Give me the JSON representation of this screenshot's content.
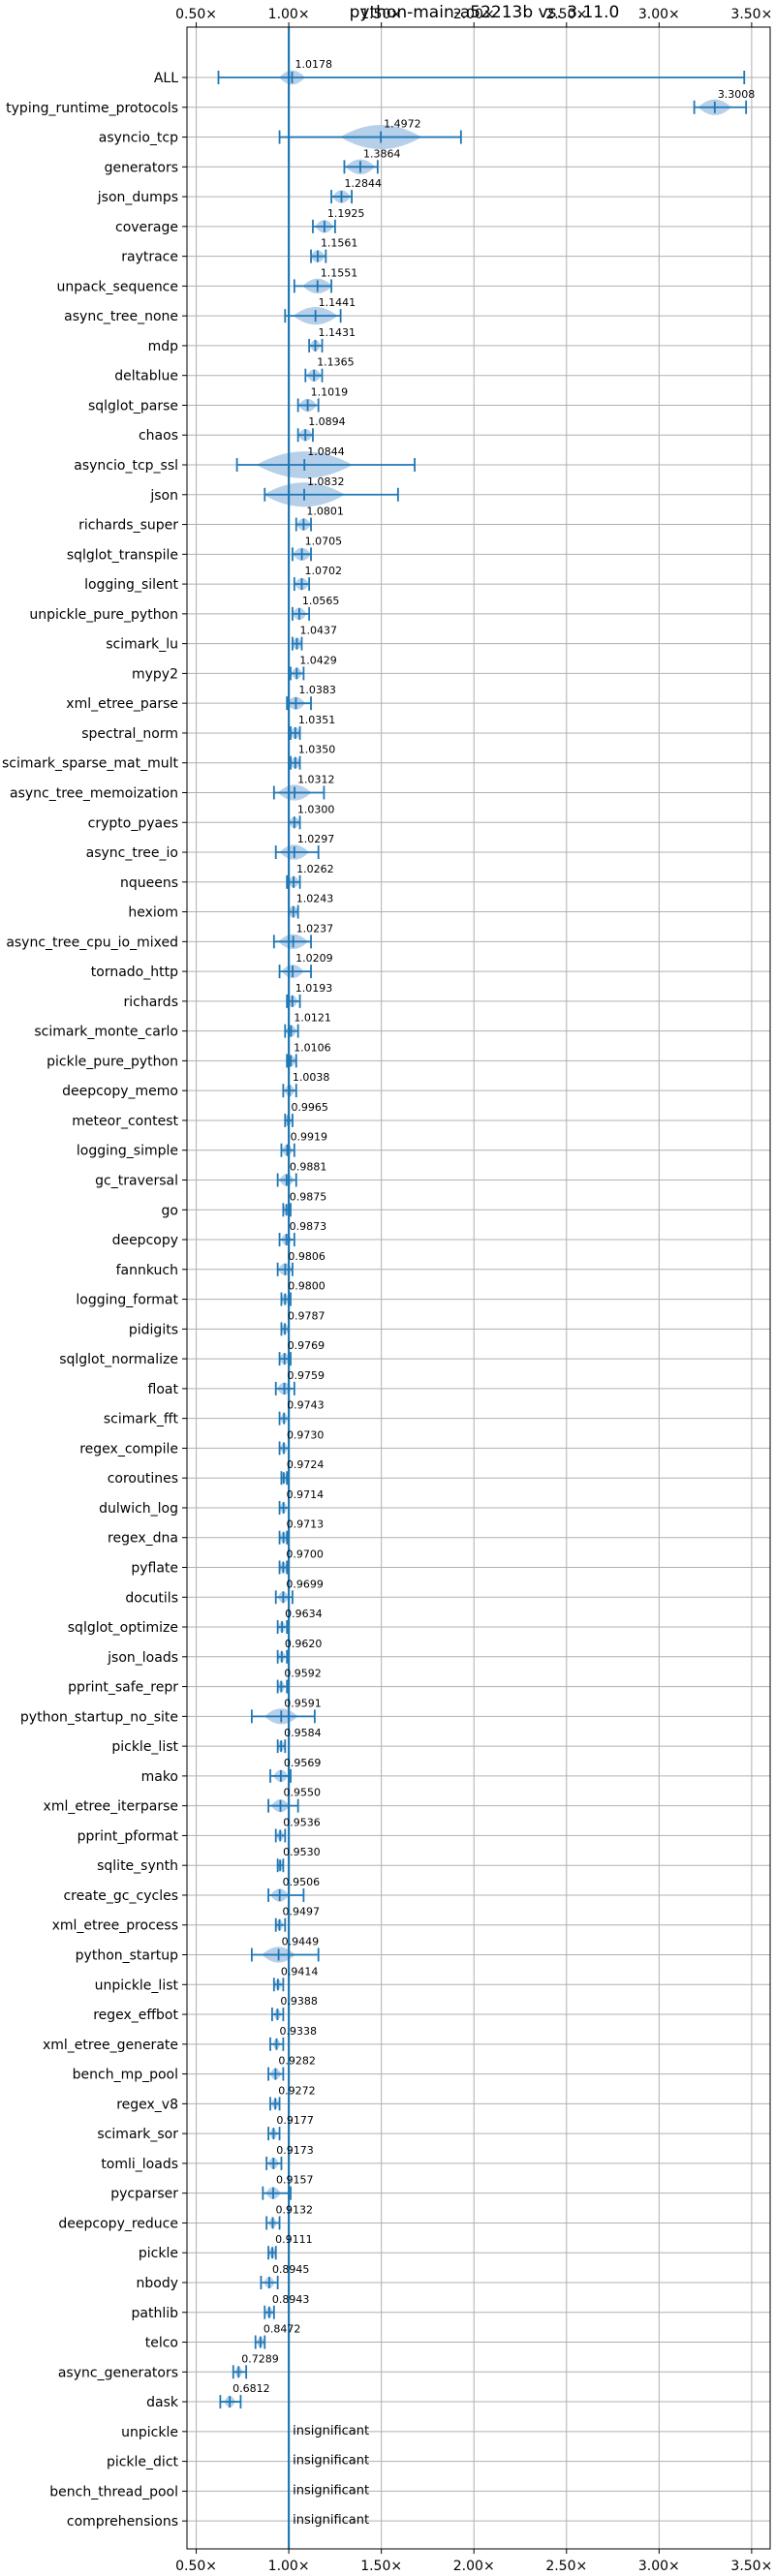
{
  "chart_data": {
    "type": "violin",
    "title": "python-main-a52213b vs. 3.11.0",
    "xlim": [
      0.45,
      3.6
    ],
    "x_ticks": [
      0.5,
      1.0,
      1.5,
      2.0,
      2.5,
      3.0,
      3.5
    ],
    "x_tick_labels": [
      "0.50×",
      "1.00×",
      "1.50×",
      "2.00×",
      "2.50×",
      "3.00×",
      "3.50×"
    ],
    "reference_line": 1.0,
    "grid": true,
    "color": "#1f77b4",
    "violin_fill": "#a9c8e6",
    "insignificant_label": "insignificant",
    "benchmarks": [
      {
        "name": "ALL",
        "median": 1.0178,
        "min": 0.62,
        "max": 3.46,
        "spread": 0.07,
        "label": "1.0178"
      },
      {
        "name": "typing_runtime_protocols",
        "median": 3.3008,
        "min": 3.19,
        "max": 3.47,
        "spread": 0.09,
        "label": "3.3008"
      },
      {
        "name": "asyncio_tcp",
        "median": 1.4972,
        "min": 0.95,
        "max": 1.93,
        "spread": 0.22,
        "label": "1.4972"
      },
      {
        "name": "generators",
        "median": 1.3864,
        "min": 1.3,
        "max": 1.48,
        "spread": 0.08,
        "label": "1.3864"
      },
      {
        "name": "json_dumps",
        "median": 1.2844,
        "min": 1.23,
        "max": 1.34,
        "spread": 0.05,
        "label": "1.2844"
      },
      {
        "name": "coverage",
        "median": 1.1925,
        "min": 1.13,
        "max": 1.25,
        "spread": 0.05,
        "label": "1.1925"
      },
      {
        "name": "raytrace",
        "median": 1.1561,
        "min": 1.12,
        "max": 1.2,
        "spread": 0.04,
        "label": "1.1561"
      },
      {
        "name": "unpack_sequence",
        "median": 1.1551,
        "min": 1.03,
        "max": 1.23,
        "spread": 0.08,
        "label": "1.1551"
      },
      {
        "name": "async_tree_none",
        "median": 1.1441,
        "min": 0.98,
        "max": 1.28,
        "spread": 0.12,
        "label": "1.1441"
      },
      {
        "name": "mdp",
        "median": 1.1431,
        "min": 1.11,
        "max": 1.18,
        "spread": 0.03,
        "label": "1.1431"
      },
      {
        "name": "deltablue",
        "median": 1.1365,
        "min": 1.09,
        "max": 1.18,
        "spread": 0.04,
        "label": "1.1365"
      },
      {
        "name": "sqlglot_parse",
        "median": 1.1019,
        "min": 1.05,
        "max": 1.16,
        "spread": 0.05,
        "label": "1.1019"
      },
      {
        "name": "chaos",
        "median": 1.0894,
        "min": 1.05,
        "max": 1.13,
        "spread": 0.04,
        "label": "1.0894"
      },
      {
        "name": "asyncio_tcp_ssl",
        "median": 1.0844,
        "min": 0.72,
        "max": 1.68,
        "spread": 0.26,
        "label": "1.0844"
      },
      {
        "name": "json",
        "median": 1.0832,
        "min": 0.87,
        "max": 1.59,
        "spread": 0.22,
        "label": "1.0832"
      },
      {
        "name": "richards_super",
        "median": 1.0801,
        "min": 1.04,
        "max": 1.12,
        "spread": 0.04,
        "label": "1.0801"
      },
      {
        "name": "sqlglot_transpile",
        "median": 1.0705,
        "min": 1.02,
        "max": 1.12,
        "spread": 0.05,
        "label": "1.0705"
      },
      {
        "name": "logging_silent",
        "median": 1.0702,
        "min": 1.03,
        "max": 1.11,
        "spread": 0.04,
        "label": "1.0702"
      },
      {
        "name": "unpickle_pure_python",
        "median": 1.0565,
        "min": 1.02,
        "max": 1.11,
        "spread": 0.04,
        "label": "1.0565"
      },
      {
        "name": "scimark_lu",
        "median": 1.0437,
        "min": 1.02,
        "max": 1.07,
        "spread": 0.03,
        "label": "1.0437"
      },
      {
        "name": "mypy2",
        "median": 1.0429,
        "min": 1.01,
        "max": 1.08,
        "spread": 0.03,
        "label": "1.0429"
      },
      {
        "name": "xml_etree_parse",
        "median": 1.0383,
        "min": 0.99,
        "max": 1.12,
        "spread": 0.05,
        "label": "1.0383"
      },
      {
        "name": "spectral_norm",
        "median": 1.0351,
        "min": 1.01,
        "max": 1.06,
        "spread": 0.03,
        "label": "1.0351"
      },
      {
        "name": "scimark_sparse_mat_mult",
        "median": 1.035,
        "min": 1.01,
        "max": 1.06,
        "spread": 0.03,
        "label": "1.0350"
      },
      {
        "name": "async_tree_memoization",
        "median": 1.0312,
        "min": 0.92,
        "max": 1.19,
        "spread": 0.09,
        "label": "1.0312"
      },
      {
        "name": "crypto_pyaes",
        "median": 1.03,
        "min": 1.0,
        "max": 1.06,
        "spread": 0.03,
        "label": "1.0300"
      },
      {
        "name": "async_tree_io",
        "median": 1.0297,
        "min": 0.93,
        "max": 1.16,
        "spread": 0.08,
        "label": "1.0297"
      },
      {
        "name": "nqueens",
        "median": 1.0262,
        "min": 0.99,
        "max": 1.06,
        "spread": 0.03,
        "label": "1.0262"
      },
      {
        "name": "hexiom",
        "median": 1.0243,
        "min": 1.0,
        "max": 1.05,
        "spread": 0.03,
        "label": "1.0243"
      },
      {
        "name": "async_tree_cpu_io_mixed",
        "median": 1.0237,
        "min": 0.92,
        "max": 1.12,
        "spread": 0.08,
        "label": "1.0237"
      },
      {
        "name": "tornado_http",
        "median": 1.0209,
        "min": 0.95,
        "max": 1.12,
        "spread": 0.06,
        "label": "1.0209"
      },
      {
        "name": "richards",
        "median": 1.0193,
        "min": 0.99,
        "max": 1.06,
        "spread": 0.03,
        "label": "1.0193"
      },
      {
        "name": "scimark_monte_carlo",
        "median": 1.0121,
        "min": 0.98,
        "max": 1.05,
        "spread": 0.03,
        "label": "1.0121"
      },
      {
        "name": "pickle_pure_python",
        "median": 1.0106,
        "min": 0.99,
        "max": 1.04,
        "spread": 0.03,
        "label": "1.0106"
      },
      {
        "name": "deepcopy_memo",
        "median": 1.0038,
        "min": 0.97,
        "max": 1.04,
        "spread": 0.03,
        "label": "1.0038"
      },
      {
        "name": "meteor_contest",
        "median": 0.9965,
        "min": 0.98,
        "max": 1.02,
        "spread": 0.02,
        "label": "0.9965"
      },
      {
        "name": "logging_simple",
        "median": 0.9919,
        "min": 0.96,
        "max": 1.03,
        "spread": 0.03,
        "label": "0.9919"
      },
      {
        "name": "gc_traversal",
        "median": 0.9881,
        "min": 0.94,
        "max": 1.04,
        "spread": 0.04,
        "label": "0.9881"
      },
      {
        "name": "go",
        "median": 0.9875,
        "min": 0.97,
        "max": 1.01,
        "spread": 0.02,
        "label": "0.9875"
      },
      {
        "name": "deepcopy",
        "median": 0.9873,
        "min": 0.95,
        "max": 1.03,
        "spread": 0.03,
        "label": "0.9873"
      },
      {
        "name": "fannkuch",
        "median": 0.9806,
        "min": 0.94,
        "max": 1.02,
        "spread": 0.04,
        "label": "0.9806"
      },
      {
        "name": "logging_format",
        "median": 0.98,
        "min": 0.96,
        "max": 1.01,
        "spread": 0.02,
        "label": "0.9800"
      },
      {
        "name": "pidigits",
        "median": 0.9787,
        "min": 0.96,
        "max": 1.0,
        "spread": 0.02,
        "label": "0.9787"
      },
      {
        "name": "sqlglot_normalize",
        "median": 0.9769,
        "min": 0.95,
        "max": 1.01,
        "spread": 0.03,
        "label": "0.9769"
      },
      {
        "name": "float",
        "median": 0.9759,
        "min": 0.93,
        "max": 1.03,
        "spread": 0.04,
        "label": "0.9759"
      },
      {
        "name": "scimark_fft",
        "median": 0.9743,
        "min": 0.95,
        "max": 1.0,
        "spread": 0.02,
        "label": "0.9743"
      },
      {
        "name": "regex_compile",
        "median": 0.973,
        "min": 0.95,
        "max": 1.0,
        "spread": 0.02,
        "label": "0.9730"
      },
      {
        "name": "coroutines",
        "median": 0.9724,
        "min": 0.96,
        "max": 0.99,
        "spread": 0.02,
        "label": "0.9724"
      },
      {
        "name": "dulwich_log",
        "median": 0.9714,
        "min": 0.95,
        "max": 1.0,
        "spread": 0.02,
        "label": "0.9714"
      },
      {
        "name": "regex_dna",
        "median": 0.9713,
        "min": 0.95,
        "max": 0.99,
        "spread": 0.02,
        "label": "0.9713"
      },
      {
        "name": "pyflate",
        "median": 0.97,
        "min": 0.95,
        "max": 0.99,
        "spread": 0.02,
        "label": "0.9700"
      },
      {
        "name": "docutils",
        "median": 0.9699,
        "min": 0.93,
        "max": 1.02,
        "spread": 0.03,
        "label": "0.9699"
      },
      {
        "name": "sqlglot_optimize",
        "median": 0.9634,
        "min": 0.94,
        "max": 0.99,
        "spread": 0.02,
        "label": "0.9634"
      },
      {
        "name": "json_loads",
        "median": 0.962,
        "min": 0.94,
        "max": 0.99,
        "spread": 0.02,
        "label": "0.9620"
      },
      {
        "name": "pprint_safe_repr",
        "median": 0.9592,
        "min": 0.94,
        "max": 0.99,
        "spread": 0.02,
        "label": "0.9592"
      },
      {
        "name": "python_startup_no_site",
        "median": 0.9591,
        "min": 0.8,
        "max": 1.14,
        "spread": 0.09,
        "label": "0.9591"
      },
      {
        "name": "pickle_list",
        "median": 0.9584,
        "min": 0.94,
        "max": 0.98,
        "spread": 0.02,
        "label": "0.9584"
      },
      {
        "name": "mako",
        "median": 0.9569,
        "min": 0.9,
        "max": 1.01,
        "spread": 0.04,
        "label": "0.9569"
      },
      {
        "name": "xml_etree_iterparse",
        "median": 0.955,
        "min": 0.89,
        "max": 1.05,
        "spread": 0.05,
        "label": "0.9550"
      },
      {
        "name": "pprint_pformat",
        "median": 0.9536,
        "min": 0.93,
        "max": 0.98,
        "spread": 0.02,
        "label": "0.9536"
      },
      {
        "name": "sqlite_synth",
        "median": 0.953,
        "min": 0.94,
        "max": 0.97,
        "spread": 0.02,
        "label": "0.9530"
      },
      {
        "name": "create_gc_cycles",
        "median": 0.9506,
        "min": 0.89,
        "max": 1.08,
        "spread": 0.05,
        "label": "0.9506"
      },
      {
        "name": "xml_etree_process",
        "median": 0.9497,
        "min": 0.93,
        "max": 0.98,
        "spread": 0.02,
        "label": "0.9497"
      },
      {
        "name": "python_startup",
        "median": 0.9449,
        "min": 0.8,
        "max": 1.16,
        "spread": 0.09,
        "label": "0.9449"
      },
      {
        "name": "unpickle_list",
        "median": 0.9414,
        "min": 0.92,
        "max": 0.97,
        "spread": 0.02,
        "label": "0.9414"
      },
      {
        "name": "regex_effbot",
        "median": 0.9388,
        "min": 0.91,
        "max": 0.97,
        "spread": 0.02,
        "label": "0.9388"
      },
      {
        "name": "xml_etree_generate",
        "median": 0.9338,
        "min": 0.9,
        "max": 0.97,
        "spread": 0.02,
        "label": "0.9338"
      },
      {
        "name": "bench_mp_pool",
        "median": 0.9282,
        "min": 0.89,
        "max": 0.97,
        "spread": 0.03,
        "label": "0.9282"
      },
      {
        "name": "regex_v8",
        "median": 0.9272,
        "min": 0.9,
        "max": 0.95,
        "spread": 0.02,
        "label": "0.9272"
      },
      {
        "name": "scimark_sor",
        "median": 0.9177,
        "min": 0.89,
        "max": 0.95,
        "spread": 0.02,
        "label": "0.9177"
      },
      {
        "name": "tomli_loads",
        "median": 0.9173,
        "min": 0.88,
        "max": 0.96,
        "spread": 0.03,
        "label": "0.9173"
      },
      {
        "name": "pycparser",
        "median": 0.9157,
        "min": 0.86,
        "max": 1.01,
        "spread": 0.04,
        "label": "0.9157"
      },
      {
        "name": "deepcopy_reduce",
        "median": 0.9132,
        "min": 0.88,
        "max": 0.95,
        "spread": 0.02,
        "label": "0.9132"
      },
      {
        "name": "pickle",
        "median": 0.9111,
        "min": 0.89,
        "max": 0.93,
        "spread": 0.02,
        "label": "0.9111"
      },
      {
        "name": "nbody",
        "median": 0.8945,
        "min": 0.85,
        "max": 0.94,
        "spread": 0.03,
        "label": "0.8945"
      },
      {
        "name": "pathlib",
        "median": 0.8943,
        "min": 0.87,
        "max": 0.92,
        "spread": 0.02,
        "label": "0.8943"
      },
      {
        "name": "telco",
        "median": 0.8472,
        "min": 0.82,
        "max": 0.87,
        "spread": 0.02,
        "label": "0.8472"
      },
      {
        "name": "async_generators",
        "median": 0.7289,
        "min": 0.7,
        "max": 0.77,
        "spread": 0.02,
        "label": "0.7289"
      },
      {
        "name": "dask",
        "median": 0.6812,
        "min": 0.63,
        "max": 0.74,
        "spread": 0.03,
        "label": "0.6812"
      },
      {
        "name": "unpickle",
        "insignificant": true
      },
      {
        "name": "pickle_dict",
        "insignificant": true
      },
      {
        "name": "bench_thread_pool",
        "insignificant": true
      },
      {
        "name": "comprehensions",
        "insignificant": true
      }
    ]
  }
}
